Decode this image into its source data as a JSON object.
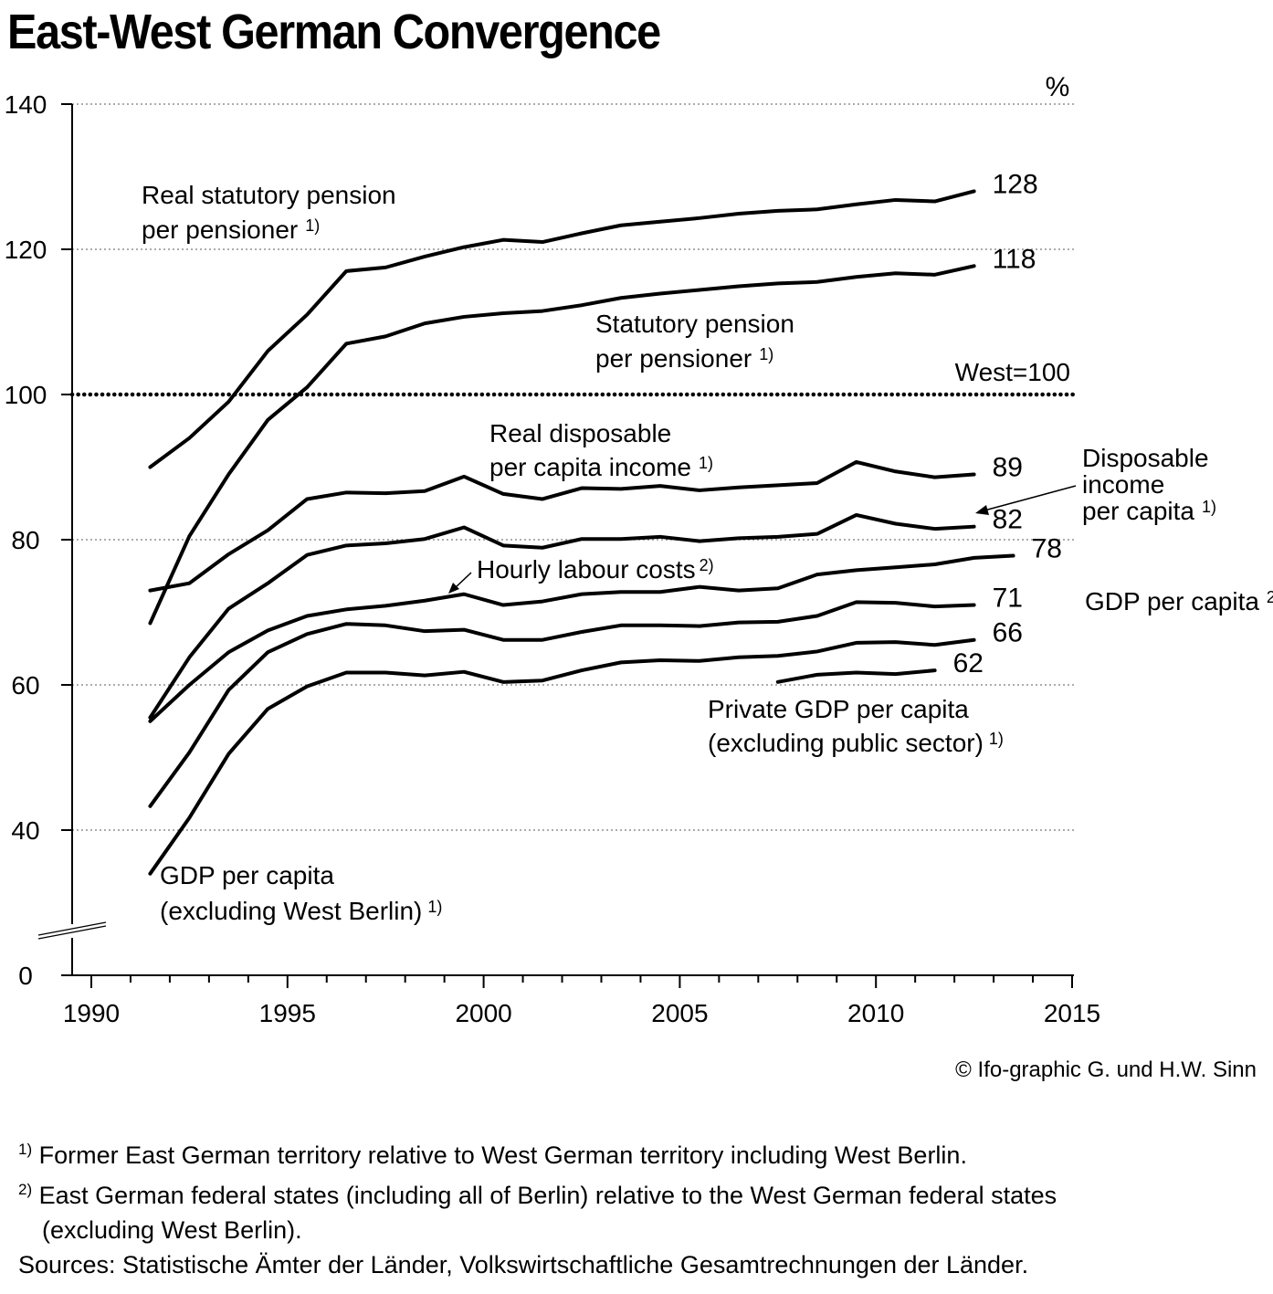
{
  "chart_data": {
    "type": "line",
    "title": "East-West German Convergence",
    "unit_label": "%",
    "x_ticks": [
      "1990",
      "1995",
      "2000",
      "2005",
      "2010",
      "2015"
    ],
    "xlim": [
      1990,
      2015
    ],
    "y_ticks": [
      "0",
      "40",
      "60",
      "80",
      "100",
      "120",
      "140"
    ],
    "ylim": [
      0,
      140
    ],
    "axis_break": "between 0 and 40",
    "grid": "dotted horizontal at 40, 60, 80, 120, 140",
    "reference_line": {
      "value": 100,
      "label": "West=100"
    },
    "series": [
      {
        "name": "Real statutory pension per pensioner",
        "end_label": "128",
        "x": [
          1991,
          1992,
          1993,
          1994,
          1995,
          1996,
          1997,
          1998,
          1999,
          2000,
          2001,
          2002,
          2003,
          2004,
          2005,
          2006,
          2007,
          2008,
          2009,
          2010,
          2011,
          2012
        ],
        "y": [
          90,
          94,
          99,
          106,
          111,
          117,
          117.5,
          119,
          120.3,
          121.3,
          121,
          122.2,
          123.3,
          123.8,
          124.3,
          124.9,
          125.3,
          125.5,
          126.2,
          126.8,
          126.6,
          128
        ]
      },
      {
        "name": "Statutory pension per pensioner",
        "end_label": "118",
        "x": [
          1991,
          1992,
          1993,
          1994,
          1995,
          1996,
          1997,
          1998,
          1999,
          2000,
          2001,
          2002,
          2003,
          2004,
          2005,
          2006,
          2007,
          2008,
          2009,
          2010,
          2011,
          2012
        ],
        "y": [
          68.5,
          80.5,
          89,
          96.5,
          101,
          107,
          108,
          109.8,
          110.7,
          111.2,
          111.5,
          112.3,
          113.3,
          113.9,
          114.4,
          114.9,
          115.3,
          115.5,
          116.2,
          116.7,
          116.5,
          117.7
        ]
      },
      {
        "name": "Real disposable per capita income",
        "end_label": "89",
        "x": [
          1991,
          1992,
          1993,
          1994,
          1995,
          1996,
          1997,
          1998,
          1999,
          2000,
          2001,
          2002,
          2003,
          2004,
          2005,
          2006,
          2007,
          2008,
          2009,
          2010,
          2011,
          2012
        ],
        "y": [
          73,
          74,
          78,
          81.3,
          85.6,
          86.5,
          86.4,
          86.7,
          88.7,
          86.3,
          85.6,
          87.1,
          87,
          87.4,
          86.8,
          87.2,
          87.5,
          87.8,
          90.7,
          89.4,
          88.6,
          89
        ]
      },
      {
        "name": "Disposable income per capita",
        "end_label": "82",
        "x": [
          1991,
          1992,
          1993,
          1994,
          1995,
          1996,
          1997,
          1998,
          1999,
          2000,
          2001,
          2002,
          2003,
          2004,
          2005,
          2006,
          2007,
          2008,
          2009,
          2010,
          2011,
          2012
        ],
        "y": [
          55.5,
          63.8,
          70.5,
          74,
          77.9,
          79.2,
          79.5,
          80.1,
          81.7,
          79.2,
          78.9,
          80.1,
          80.1,
          80.4,
          79.8,
          80.2,
          80.4,
          80.8,
          83.4,
          82.2,
          81.5,
          81.8
        ]
      },
      {
        "name": "Hourly labour costs",
        "end_label": "78",
        "x": [
          1991,
          1992,
          1993,
          1994,
          1995,
          1996,
          1997,
          1998,
          1999,
          2000,
          2001,
          2002,
          2003,
          2004,
          2005,
          2006,
          2007,
          2008,
          2009,
          2010,
          2011,
          2012,
          2013
        ],
        "y": [
          55,
          60,
          64.5,
          67.5,
          69.5,
          70.4,
          70.9,
          71.6,
          72.5,
          71,
          71.5,
          72.5,
          72.8,
          72.8,
          73.5,
          73,
          73.3,
          75.2,
          75.8,
          76.2,
          76.6,
          77.5,
          77.8
        ]
      },
      {
        "name": "GDP per capita",
        "end_label": "71",
        "x": [
          1991,
          1992,
          1993,
          1994,
          1995,
          1996,
          1997,
          1998,
          1999,
          2000,
          2001,
          2002,
          2003,
          2004,
          2005,
          2006,
          2007,
          2008,
          2009,
          2010,
          2011,
          2012
        ],
        "y": [
          43.3,
          50.7,
          59.3,
          64.5,
          67,
          68.4,
          68.2,
          67.4,
          67.6,
          66.2,
          66.2,
          67.3,
          68.2,
          68.2,
          68.1,
          68.6,
          68.7,
          69.5,
          71.4,
          71.3,
          70.8,
          71
        ]
      },
      {
        "name": "GDP per capita (excluding West Berlin)",
        "end_label": "66",
        "x": [
          1991,
          1992,
          1993,
          1994,
          1995,
          1996,
          1997,
          1998,
          1999,
          2000,
          2001,
          2002,
          2003,
          2004,
          2005,
          2006,
          2007,
          2008,
          2009,
          2010,
          2011,
          2012
        ],
        "y": [
          34,
          41.7,
          50.5,
          56.7,
          59.8,
          61.7,
          61.7,
          61.3,
          61.8,
          60.4,
          60.6,
          62,
          63.1,
          63.4,
          63.3,
          63.8,
          64,
          64.6,
          65.8,
          65.9,
          65.5,
          66.2
        ]
      },
      {
        "name": "Private GDP per capita (excluding public sector)",
        "end_label": "62",
        "x": [
          2007,
          2008,
          2009,
          2010,
          2011
        ],
        "y": [
          60.4,
          61.4,
          61.7,
          61.5,
          62
        ]
      }
    ]
  },
  "annotations": {
    "real_pension_line1": "Real statutory pension",
    "real_pension_line2": "per pensioner",
    "pension_line1": "Statutory pension",
    "pension_line2": "per pensioner",
    "real_disp_line1": "Real disposable",
    "real_disp_line2": "per capita income",
    "disp_line1": "Disposable",
    "disp_line2": "income",
    "disp_line3": "per capita",
    "hourly": "Hourly labour costs",
    "gdp_label": "GDP per capita",
    "gdp_exwb_line1": "GDP per capita",
    "gdp_exwb_line2": "(excluding West Berlin)",
    "private_line1": "Private GDP per capita",
    "private_line2": "(excluding public sector)",
    "fn1": "1)",
    "fn2": "2)"
  },
  "credit": "© Ifo-graphic  G. und H.W. Sinn",
  "footnotes": {
    "n1_mark": "1)",
    "n1_text": "Former East German territory relative to West German territory including West Berlin.",
    "n2_mark": "2)",
    "n2_text": "East German federal states (including all of Berlin) relative to the West German federal states",
    "n2_text_cont": "(excluding West Berlin).",
    "sources": "Sources: Statistische Ämter der Länder, Volkswirtschaftliche Gesamtrechnungen der Länder."
  }
}
